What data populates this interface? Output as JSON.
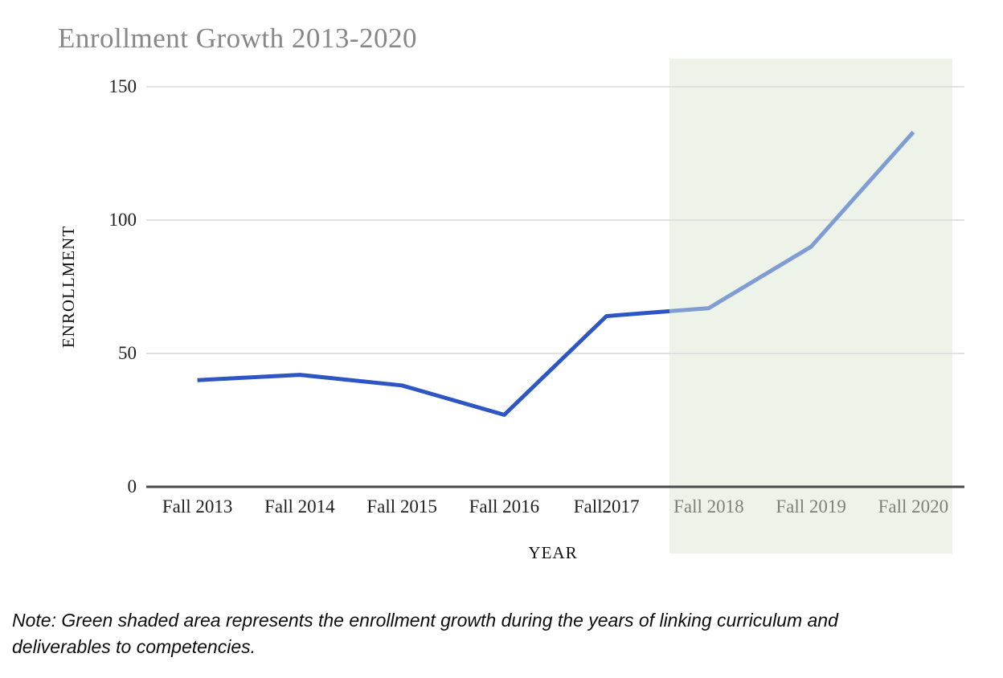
{
  "title": "Enrollment Growth 2013-2020",
  "note": "Note: Green shaded area represents the enrollment growth during the years of linking curriculum and deliverables to competencies.",
  "chart_data": {
    "type": "line",
    "title": "Enrollment Growth 2013-2020",
    "xlabel": "YEAR",
    "ylabel": "ENROLLMENT",
    "categories": [
      "Fall 2013",
      "Fall 2014",
      "Fall 2015",
      "Fall 2016",
      "Fall2017",
      "Fall 2018",
      "Fall 2019",
      "Fall 2020"
    ],
    "series": [
      {
        "name": "Enrollment",
        "values": [
          40,
          42,
          38,
          27,
          64,
          67,
          90,
          133
        ]
      }
    ],
    "ylim": [
      0,
      150
    ],
    "yticks": [
      0,
      50,
      100,
      150
    ],
    "grid": true,
    "legend": false,
    "highlight_region": {
      "categories": [
        "Fall 2018",
        "Fall 2019",
        "Fall 2020"
      ],
      "start_index": 5,
      "color": "#edf3e8"
    },
    "colors": {
      "line_main": "#2d55c3",
      "line_highlight": "#7f9dd3",
      "gridline": "#d9d9d9",
      "axis": "#4a4a4a",
      "title": "#878787",
      "tick_label": "#1f1f1f",
      "tick_label_highlight": "#7d8178",
      "background": "#ffffff"
    }
  }
}
